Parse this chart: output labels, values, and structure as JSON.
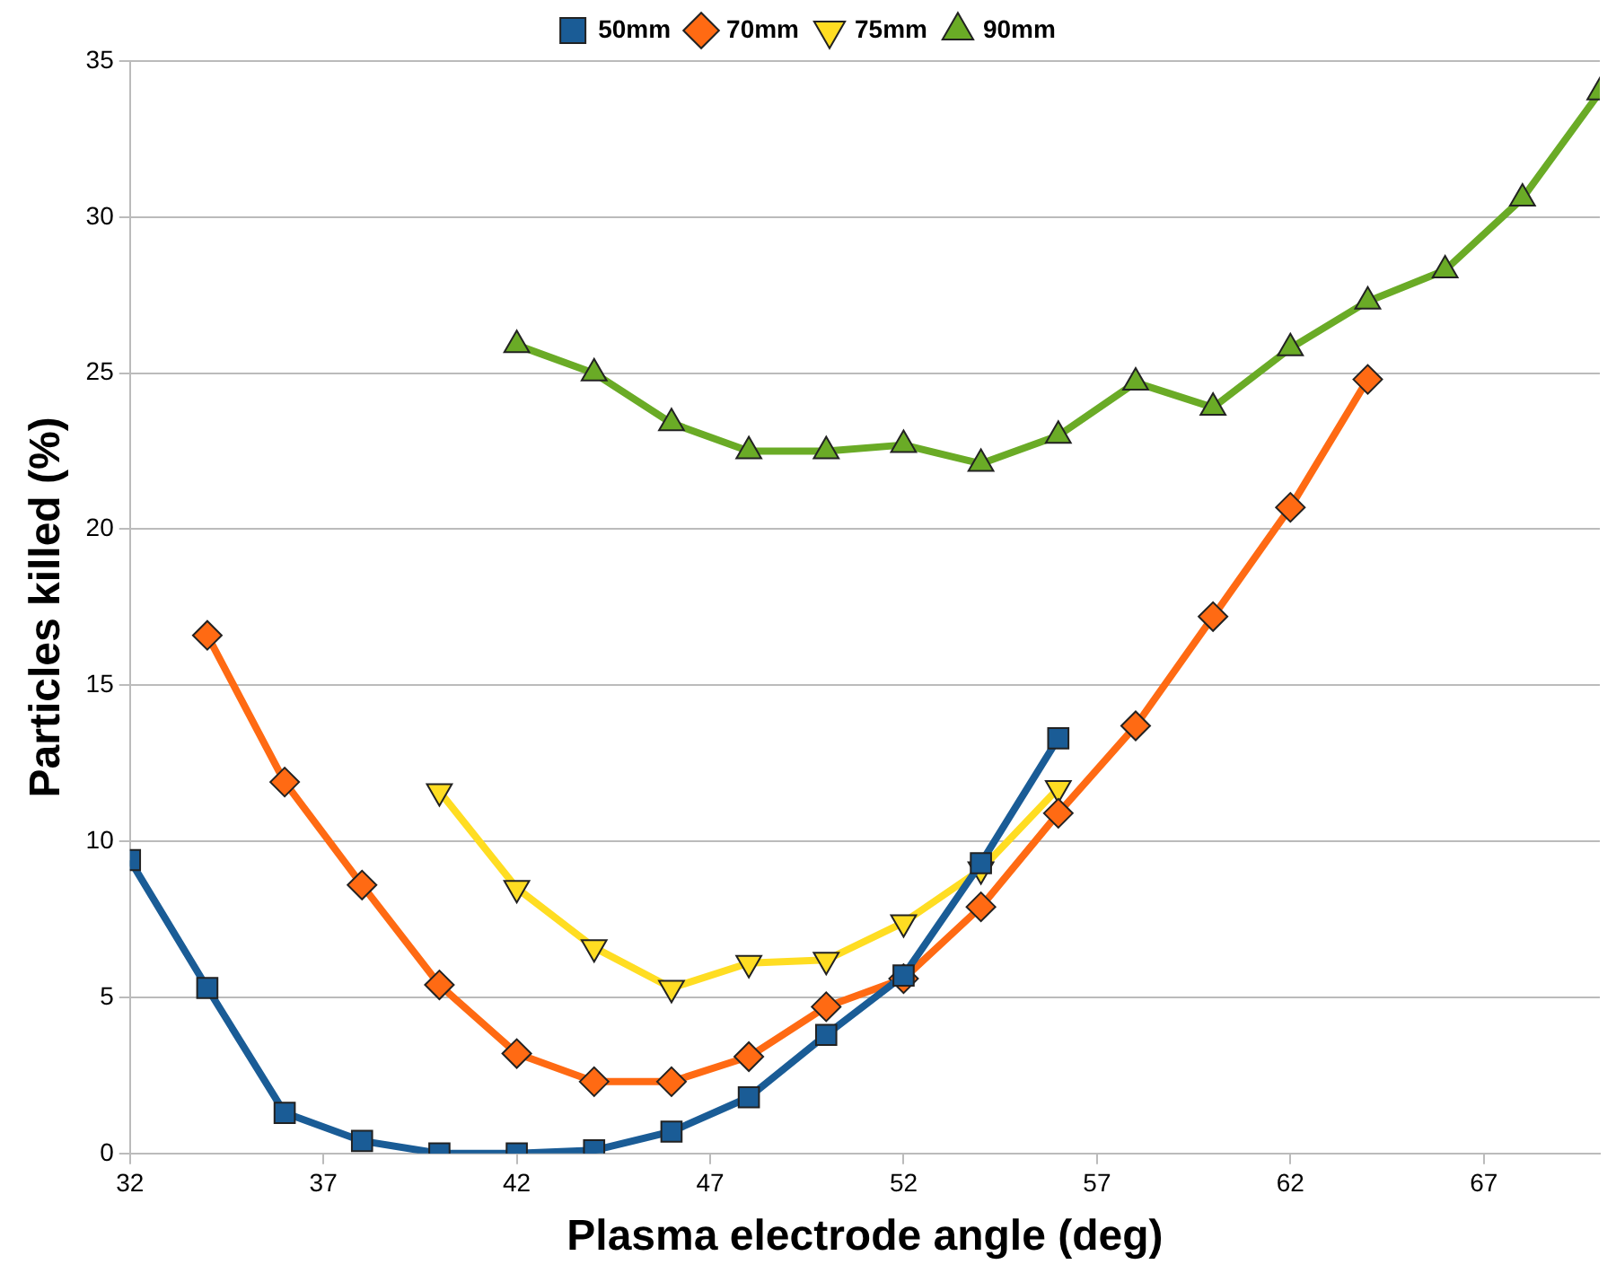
{
  "chart_data": {
    "type": "line",
    "xlabel": "Plasma electrode angle (deg)",
    "ylabel": "Particles killed (%)",
    "xlim": [
      32,
      70
    ],
    "xticks": [
      32,
      37,
      42,
      47,
      52,
      57,
      62,
      67
    ],
    "ylim": [
      0,
      35
    ],
    "yticks": [
      0,
      5,
      10,
      15,
      20,
      25,
      30,
      35
    ],
    "grid": "y",
    "legend": "top",
    "line_style": "solid",
    "series": [
      {
        "name": "50mm",
        "color": "#1a5c96",
        "marker": "square",
        "x": [
          32,
          34,
          36,
          38,
          40,
          42,
          44,
          46,
          48,
          50,
          52,
          54,
          56
        ],
        "values": [
          9.4,
          5.3,
          1.3,
          0.4,
          0,
          0,
          0.1,
          0.7,
          1.8,
          3.8,
          5.7,
          9.3,
          13.3
        ]
      },
      {
        "name": "70mm",
        "color": "#ff6a13",
        "marker": "diamond",
        "x": [
          34,
          36,
          38,
          40,
          42,
          44,
          46,
          48,
          50,
          52,
          54,
          56,
          58,
          60,
          62,
          64
        ],
        "values": [
          16.6,
          11.9,
          8.6,
          5.4,
          3.2,
          2.3,
          2.3,
          3.1,
          4.7,
          5.6,
          7.9,
          10.9,
          13.7,
          17.2,
          20.7,
          24.8
        ]
      },
      {
        "name": "75mm",
        "color": "#ffdd22",
        "marker": "triangle-down",
        "x": [
          40,
          42,
          44,
          46,
          48,
          50,
          52,
          54,
          56
        ],
        "values": [
          11.6,
          8.5,
          6.6,
          5.3,
          6.1,
          6.2,
          7.4,
          9.1,
          11.7
        ]
      },
      {
        "name": "90mm",
        "color": "#6aab26",
        "marker": "triangle",
        "x": [
          42,
          44,
          46,
          48,
          50,
          52,
          54,
          56,
          58,
          60,
          62,
          64,
          66,
          68,
          70
        ],
        "values": [
          25.9,
          25.0,
          23.4,
          22.5,
          22.5,
          22.7,
          22.1,
          23.0,
          24.7,
          23.9,
          25.8,
          27.3,
          28.3,
          30.6,
          34.0
        ]
      }
    ]
  }
}
